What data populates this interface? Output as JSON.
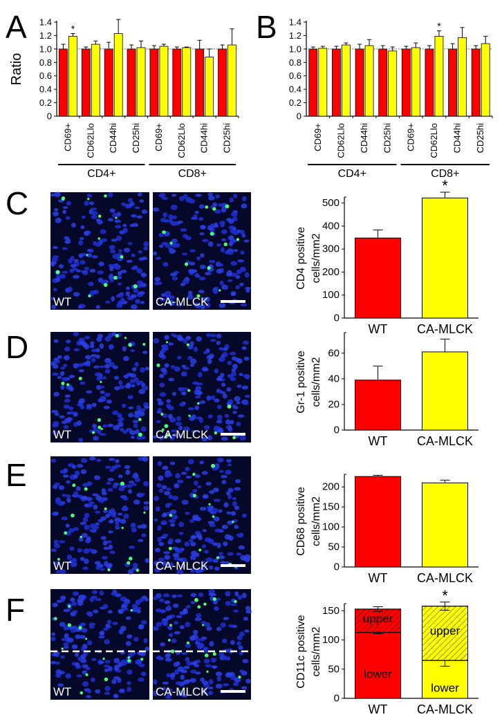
{
  "chart_data": [
    {
      "type": "grouped_bar",
      "panel": "A",
      "ylabel": "Ratio",
      "categories": [
        "CD69+",
        "CD62Llo",
        "CD44hi",
        "CD25hi",
        "CD69+",
        "CD62Llo",
        "CD44hi",
        "CD25hi"
      ],
      "groups": [
        "CD4+",
        "CD8+"
      ],
      "series": [
        {
          "color": "#ff0000",
          "values": [
            1,
            1,
            1,
            1,
            1,
            1,
            1,
            1
          ],
          "errors": [
            0.07,
            0.03,
            0.1,
            0.06,
            0.05,
            0.03,
            0.13,
            0.06
          ],
          "sig": [
            null,
            null,
            null,
            null,
            null,
            null,
            null,
            null
          ]
        },
        {
          "color": "#ffff00",
          "values": [
            1.19,
            1.07,
            1.23,
            1.02,
            1.04,
            1.02,
            0.88,
            1.06
          ],
          "errors": [
            0.04,
            0.05,
            0.21,
            0.1,
            0.03,
            0.01,
            0.12,
            0.24
          ],
          "sig": [
            "*",
            null,
            null,
            null,
            null,
            null,
            null,
            null
          ]
        }
      ],
      "hline": 1,
      "ylim": [
        0,
        1.4
      ],
      "yticks": [
        0,
        0.2,
        0.4,
        0.6,
        0.8,
        {
          "value": 1,
          "label": "1.0"
        },
        1.2,
        1.4
      ]
    },
    {
      "type": "grouped_bar",
      "panel": "B",
      "categories": [
        "CD69+",
        "CD62Llo",
        "CD44hi",
        "CD25hi",
        "CD69+",
        "CD62Llo",
        "CD44hi",
        "CD25hi"
      ],
      "groups": [
        "CD4+",
        "CD8+"
      ],
      "series": [
        {
          "color": "#ff0000",
          "values": [
            1,
            1,
            1,
            1,
            1,
            1,
            1,
            1
          ],
          "errors": [
            0.03,
            0.04,
            0.07,
            0.05,
            0.04,
            0.05,
            0.08,
            0.05
          ],
          "sig": [
            null,
            null,
            null,
            null,
            null,
            null,
            null,
            null
          ]
        },
        {
          "color": "#ffff00",
          "values": [
            1.01,
            1.06,
            1.05,
            0.97,
            1.02,
            1.19,
            1.17,
            1.08
          ],
          "errors": [
            0.03,
            0.03,
            0.09,
            0.06,
            0.07,
            0.08,
            0.15,
            0.11
          ],
          "sig": [
            null,
            null,
            null,
            null,
            null,
            "*",
            null,
            null
          ]
        }
      ],
      "hline": 1,
      "ylim": [
        0,
        1.4
      ],
      "yticks": [
        0,
        0.2,
        0.4,
        0.6,
        0.8,
        {
          "value": 1,
          "label": "1.0"
        },
        1.2,
        1.4
      ]
    },
    {
      "type": "bar",
      "panel": "C",
      "ylabel": [
        "CD4 positive",
        "cells/mm2"
      ],
      "micrograph_labels": [
        "WT",
        "CA-MLCK"
      ],
      "categories": [
        "WT",
        "CA-MLCK"
      ],
      "values": [
        348,
        522
      ],
      "errors": [
        35,
        25
      ],
      "sig": [
        null,
        "*"
      ],
      "colors": [
        "#ff0000",
        "#ffff00"
      ],
      "ylim": [
        0,
        520
      ],
      "yticks": [
        0,
        100,
        200,
        300,
        400,
        500
      ]
    },
    {
      "type": "bar",
      "panel": "D",
      "ylabel": [
        "Gr-1 positive",
        "cells/mm2"
      ],
      "micrograph_labels": [
        "WT",
        "CA-MLCK"
      ],
      "categories": [
        "WT",
        "CA-MLCK"
      ],
      "values": [
        39,
        61
      ],
      "errors": [
        11,
        10
      ],
      "sig": [
        null,
        null
      ],
      "colors": [
        "#ff0000",
        "#ffff00"
      ],
      "ylim": [
        0,
        75
      ],
      "yticks": [
        0,
        20,
        40,
        60
      ]
    },
    {
      "type": "bar",
      "panel": "E",
      "ylabel": [
        "CD68 positive",
        "cells/mm2"
      ],
      "micrograph_labels": [
        "WT",
        "CA-MLCK"
      ],
      "categories": [
        "WT",
        "CA-MLCK"
      ],
      "values": [
        226,
        210
      ],
      "errors": [
        3,
        7
      ],
      "sig": [
        null,
        null
      ],
      "colors": [
        "#ff0000",
        "#ffff00"
      ],
      "ylim": [
        0,
        228
      ],
      "yticks": [
        0,
        50,
        100,
        150,
        200
      ]
    },
    {
      "type": "stacked_bar",
      "panel": "F",
      "ylabel": [
        "CD11c positive",
        "cells/mm2"
      ],
      "micrograph_labels": [
        "WT",
        "CA-MLCK"
      ],
      "categories": [
        "WT",
        "CA-MLCK"
      ],
      "colors": [
        "#ff0000",
        "#ffff00"
      ],
      "series": [
        {
          "name": "lower",
          "values": [
            113,
            65
          ],
          "errors": [
            2,
            10
          ],
          "sig": [
            null,
            "*"
          ],
          "hatched": false
        },
        {
          "name": "upper",
          "values": [
            40,
            93
          ],
          "errors": [
            4,
            7
          ],
          "sig": [
            null,
            "*"
          ],
          "hatched": true
        }
      ],
      "ylim": [
        0,
        160
      ],
      "yticks": [
        0,
        50,
        100,
        150
      ]
    }
  ]
}
